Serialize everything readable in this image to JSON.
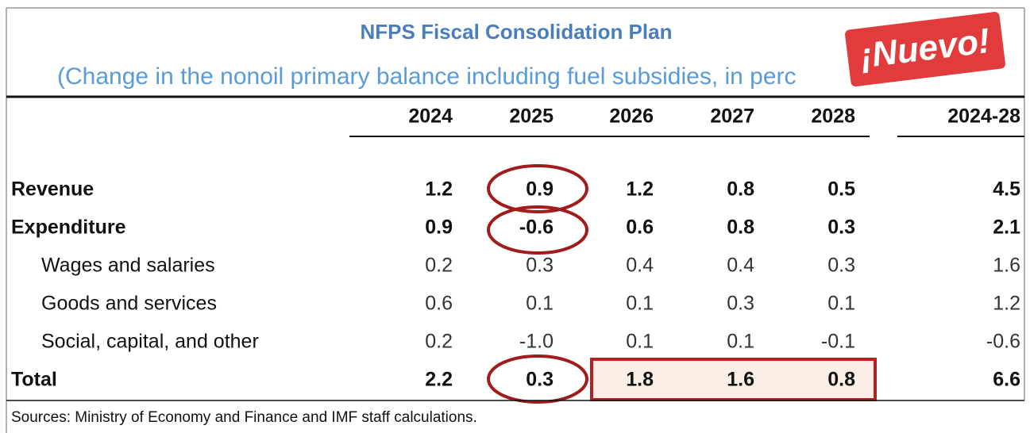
{
  "header": {
    "title": "NFPS Fiscal Consolidation Plan",
    "subtitle": "(Change in the nonoil primary balance including fuel subsidies, in perc",
    "badge": "¡Nuevo!"
  },
  "table": {
    "columns": [
      "2024",
      "2025",
      "2026",
      "2027",
      "2028",
      "2024-28"
    ],
    "rows": [
      [
        "Revenue",
        "1.2",
        "0.9",
        "1.2",
        "0.8",
        "0.5",
        "4.5"
      ],
      [
        "Expenditure",
        "0.9",
        "-0.6",
        "0.6",
        "0.8",
        "0.3",
        "2.1"
      ],
      [
        "Wages and salaries",
        "0.2",
        "0.3",
        "0.4",
        "0.4",
        "0.3",
        "1.6"
      ],
      [
        "Goods and services",
        "0.6",
        "0.1",
        "0.1",
        "0.3",
        "0.1",
        "1.2"
      ],
      [
        "Social, capital, and other",
        "0.2",
        "-1.0",
        "0.1",
        "0.1",
        "-0.1",
        "-0.6"
      ],
      [
        "Total",
        "2.2",
        "0.3",
        "1.8",
        "1.6",
        "0.8",
        "6.6"
      ]
    ]
  },
  "footer": {
    "source": "Sources: Ministry of Economy and Finance and IMF staff calculations."
  }
}
